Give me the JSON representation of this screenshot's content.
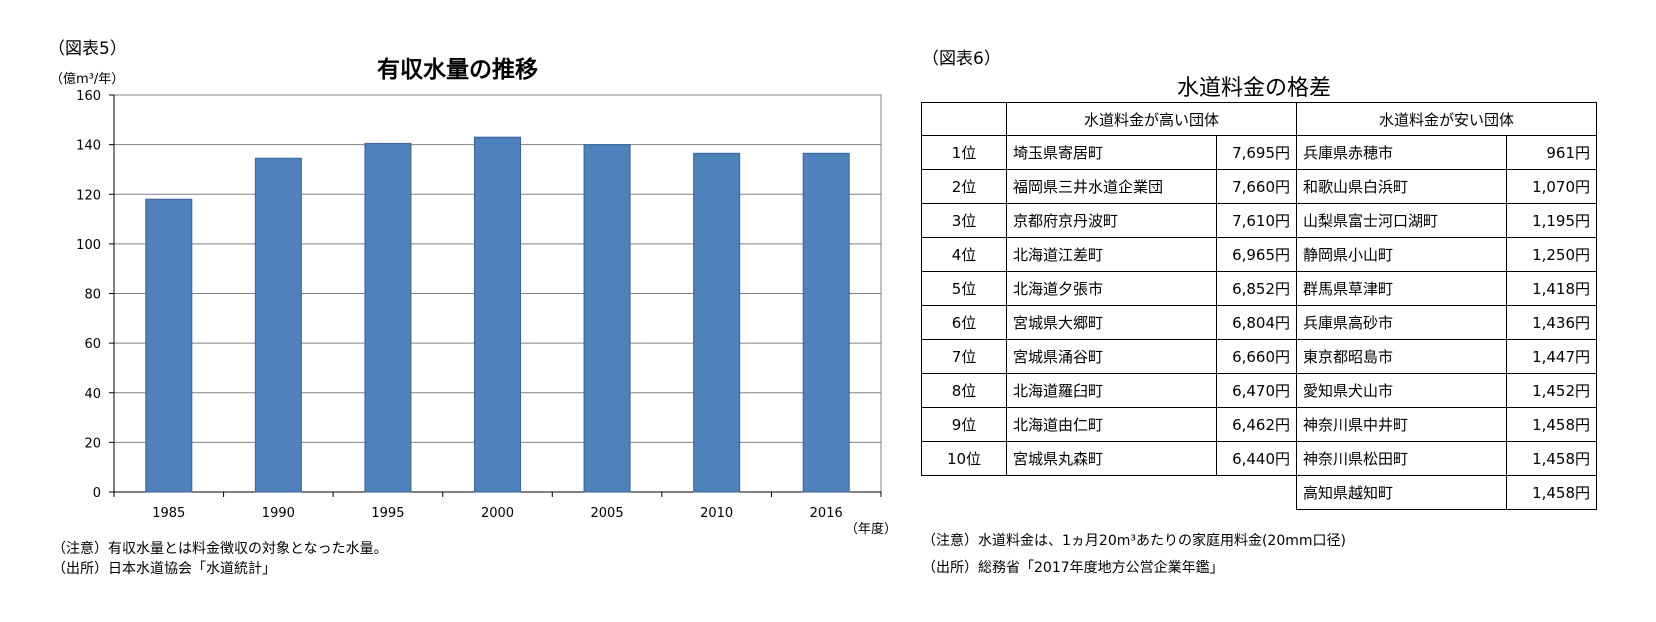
{
  "fig5": {
    "label": "（図表5）",
    "title": "有収水量の推移",
    "unit": "（億m³/年）",
    "x_unit": "（年度）",
    "notes": [
      "（注意）有収水量とは料金徴収の対象となった水量。",
      "（出所）日本水道協会「水道統計」"
    ]
  },
  "chart_data": {
    "type": "bar",
    "title": "有収水量の推移",
    "xlabel": "（年度）",
    "ylabel": "（億m³/年）",
    "categories": [
      "1985",
      "1990",
      "1995",
      "2000",
      "2005",
      "2010",
      "2016"
    ],
    "values": [
      118,
      134.5,
      140.5,
      143,
      140,
      136.5,
      136.5
    ],
    "ylim": [
      0,
      160
    ],
    "yticks": [
      0,
      20,
      40,
      60,
      80,
      100,
      120,
      140,
      160
    ],
    "grid": true,
    "legend": "none",
    "bar_color": "#4f81bd"
  },
  "fig6": {
    "label": "（図表6）",
    "title": "水道料金の格差",
    "header_high": "水道料金が高い団体",
    "header_low": "水道料金が安い団体",
    "rows": [
      {
        "rank": "1位",
        "high_name": "埼玉県寄居町",
        "high_price": "7,695円",
        "low_name": "兵庫県赤穂市",
        "low_price": "961円"
      },
      {
        "rank": "2位",
        "high_name": "福岡県三井水道企業団",
        "high_price": "7,660円",
        "low_name": "和歌山県白浜町",
        "low_price": "1,070円"
      },
      {
        "rank": "3位",
        "high_name": "京都府京丹波町",
        "high_price": "7,610円",
        "low_name": "山梨県富士河口湖町",
        "low_price": "1,195円"
      },
      {
        "rank": "4位",
        "high_name": "北海道江差町",
        "high_price": "6,965円",
        "low_name": "静岡県小山町",
        "low_price": "1,250円"
      },
      {
        "rank": "5位",
        "high_name": "北海道夕張市",
        "high_price": "6,852円",
        "low_name": "群馬県草津町",
        "low_price": "1,418円"
      },
      {
        "rank": "6位",
        "high_name": "宮城県大郷町",
        "high_price": "6,804円",
        "low_name": "兵庫県高砂市",
        "low_price": "1,436円"
      },
      {
        "rank": "7位",
        "high_name": "宮城県涌谷町",
        "high_price": "6,660円",
        "low_name": "東京都昭島市",
        "low_price": "1,447円"
      },
      {
        "rank": "8位",
        "high_name": "北海道羅臼町",
        "high_price": "6,470円",
        "low_name": "愛知県犬山市",
        "low_price": "1,452円"
      },
      {
        "rank": "9位",
        "high_name": "北海道由仁町",
        "high_price": "6,462円",
        "low_name": "神奈川県中井町",
        "low_price": "1,458円"
      },
      {
        "rank": "10位",
        "high_name": "宮城県丸森町",
        "high_price": "6,440円",
        "low_name": "神奈川県松田町",
        "low_price": "1,458円"
      }
    ],
    "extra_row": {
      "low_name": "高知県越知町",
      "low_price": "1,458円"
    },
    "notes": [
      "（注意）水道料金は、1ヵ月20m³あたりの家庭用料金(20mm口径)",
      "（出所）総務省「2017年度地方公営企業年鑑」"
    ]
  }
}
